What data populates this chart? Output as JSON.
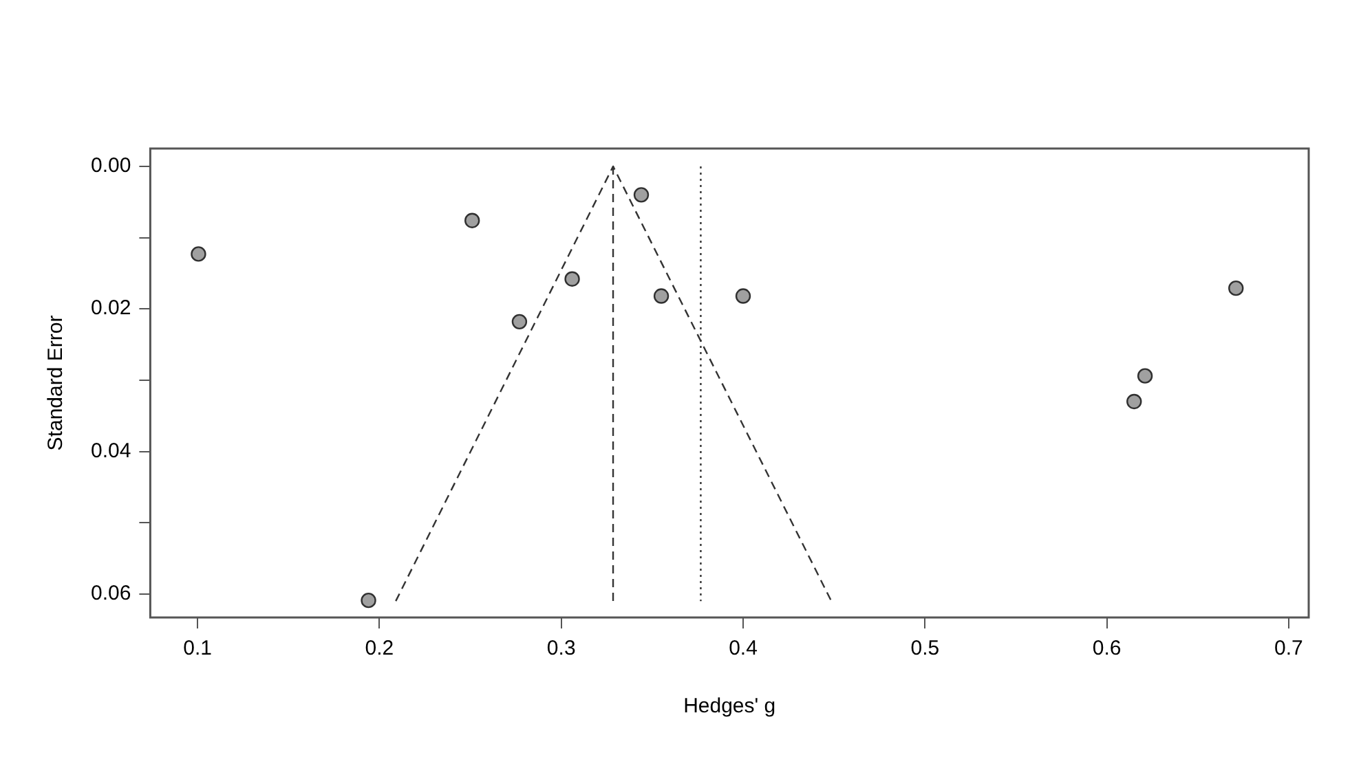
{
  "chart_data": {
    "type": "scatter",
    "xlabel": "Hedges' g",
    "ylabel": "Standard Error",
    "marker": "circle",
    "xlim": [
      0.074,
      0.711
    ],
    "xticks": [
      0.1,
      0.2,
      0.3,
      0.4,
      0.5,
      0.6,
      0.7
    ],
    "ylim": [
      0.0633,
      -0.0025
    ],
    "yticks": [
      {
        "value": 0,
        "label": "0.00"
      },
      {
        "value": 0.01,
        "label": null
      },
      {
        "value": 0.02,
        "label": "0.02"
      },
      {
        "value": 0.03,
        "label": null
      },
      {
        "value": 0.04,
        "label": "0.04"
      },
      {
        "value": 0.05,
        "label": null
      },
      {
        "value": 0.06,
        "label": "0.06"
      }
    ],
    "series": [
      {
        "type": "scatter",
        "color": "#a0a0a0",
        "x": [
          0.1005,
          0.251,
          0.277,
          0.306,
          0.344,
          0.355,
          0.4,
          0.194,
          0.671,
          0.621,
          0.615
        ],
        "values": [
          0.0123,
          0.0076,
          0.0218,
          0.0158,
          0.004,
          0.0182,
          0.0182,
          0.0609,
          0.0171,
          0.0294,
          0.033
        ]
      },
      {
        "type": "line",
        "color": "#333333",
        "line_style": "dashed",
        "marker": "none",
        "x": [
          0.209,
          0.3285,
          0.4485
        ],
        "values": [
          0.061,
          0,
          0.061
        ]
      },
      {
        "type": "line",
        "color": "#333333",
        "line_style": "dashed",
        "marker": "none",
        "x": [
          0.3285,
          0.3285
        ],
        "values": [
          0,
          0.061
        ]
      },
      {
        "type": "line",
        "color": "#333333",
        "line_style": "dotted",
        "marker": "none",
        "x": [
          0.3767,
          0.3767
        ],
        "values": [
          0,
          0.061
        ]
      }
    ]
  }
}
